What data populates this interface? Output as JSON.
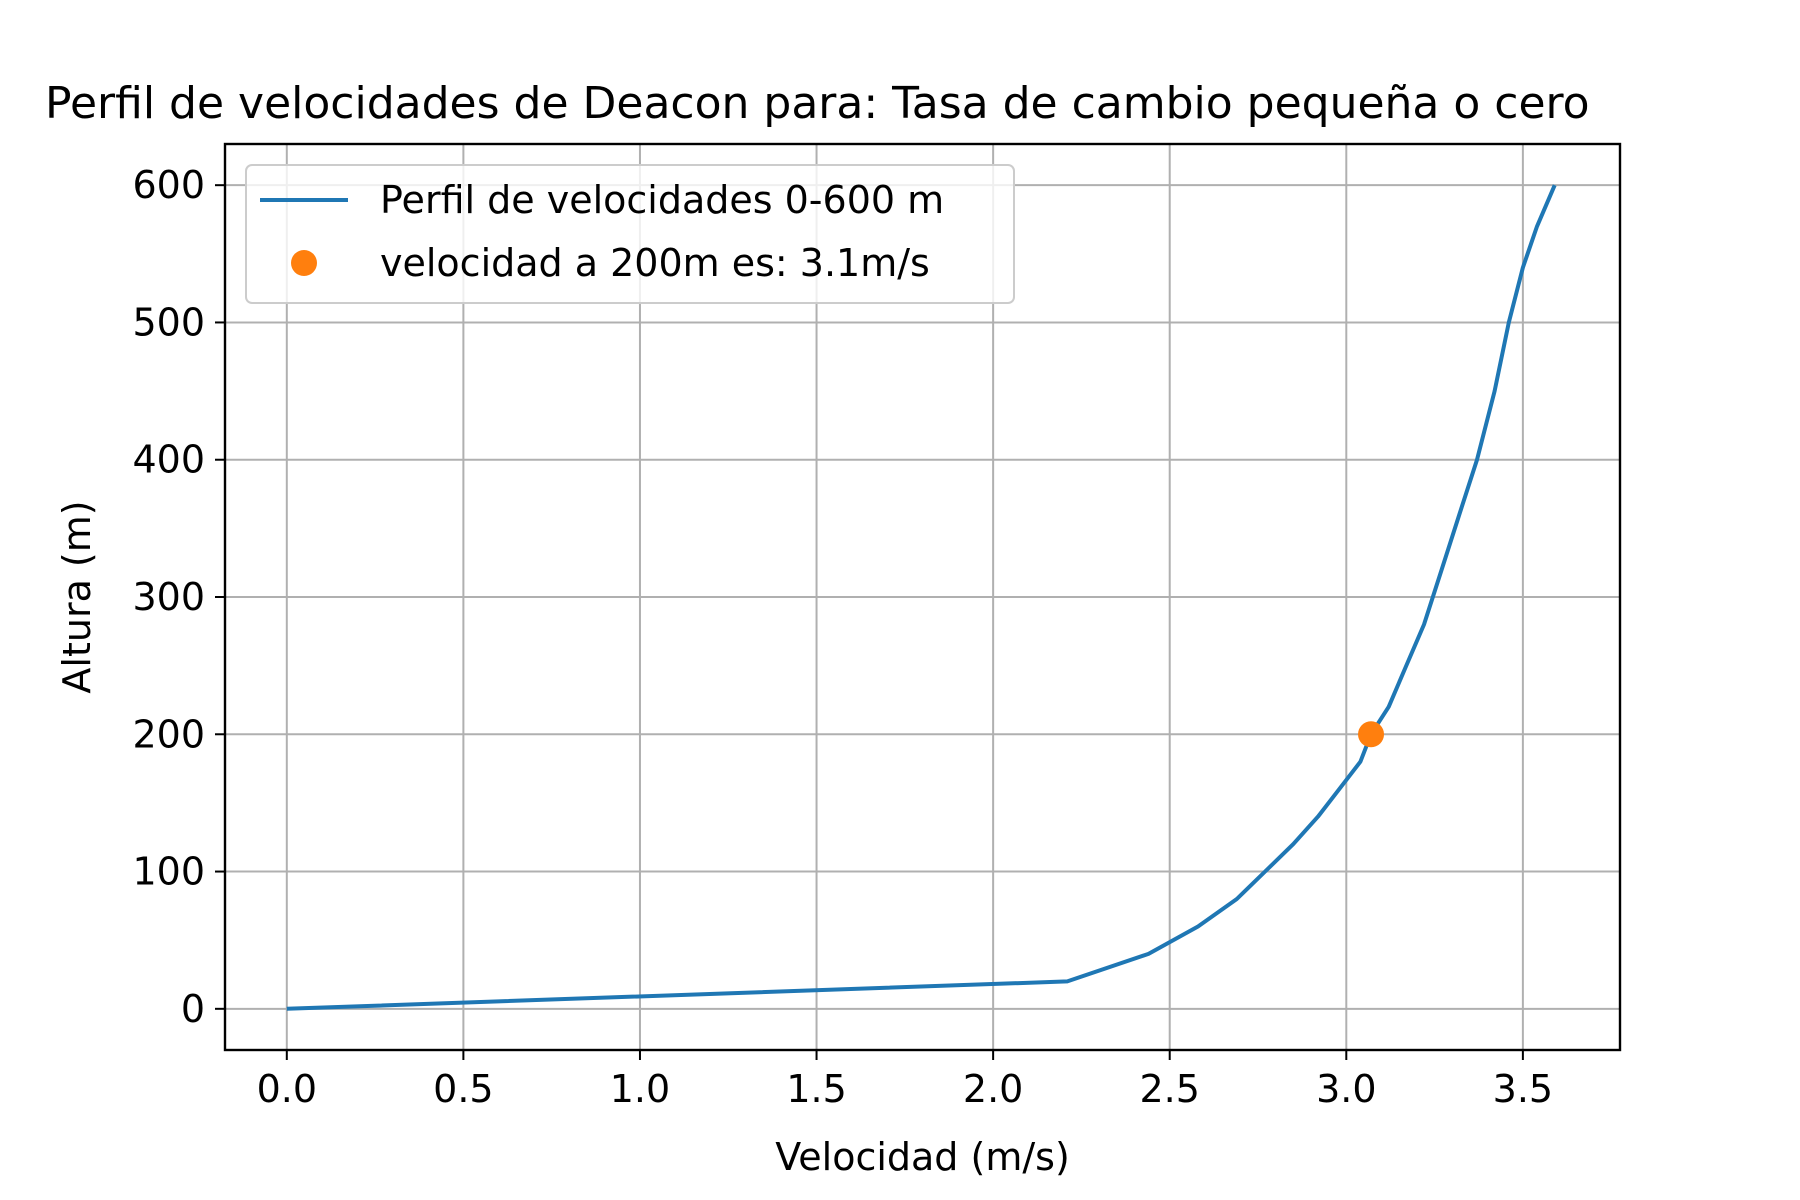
{
  "chart_data": {
    "type": "line",
    "title": "Perfil de velocidades de Deacon para: Tasa de cambio pequeña o cero",
    "xlabel": "Velocidad (m/s)",
    "ylabel": "Altura (m)",
    "xlim": [
      -0.175,
      3.775
    ],
    "ylim": [
      -30,
      630
    ],
    "xticks": [
      0.0,
      0.5,
      1.0,
      1.5,
      2.0,
      2.5,
      3.0,
      3.5
    ],
    "xtick_labels": [
      "0.0",
      "0.5",
      "1.0",
      "1.5",
      "2.0",
      "2.5",
      "3.0",
      "3.5"
    ],
    "yticks": [
      0,
      100,
      200,
      300,
      400,
      500,
      600
    ],
    "ytick_labels": [
      "0",
      "100",
      "200",
      "300",
      "400",
      "500",
      "600"
    ],
    "grid": true,
    "legend_position": "top-left",
    "series": [
      {
        "name": "Perfil de velocidades 0-600 m",
        "kind": "line",
        "color": "#1f77b4",
        "x": [
          0.0,
          2.21,
          2.44,
          2.58,
          2.69,
          2.77,
          2.85,
          2.92,
          2.98,
          3.04,
          3.07,
          3.12,
          3.17,
          3.22,
          3.27,
          3.32,
          3.37,
          3.42,
          3.46,
          3.5,
          3.54,
          3.59
        ],
        "y": [
          0,
          20,
          40,
          60,
          80,
          100,
          120,
          140,
          160,
          180,
          200,
          220,
          250,
          280,
          320,
          360,
          400,
          450,
          500,
          540,
          570,
          600
        ]
      },
      {
        "name": "velocidad a 200m es: 3.1m/s",
        "kind": "scatter",
        "color": "#ff7f0e",
        "x": [
          3.07
        ],
        "y": [
          200
        ]
      }
    ]
  }
}
